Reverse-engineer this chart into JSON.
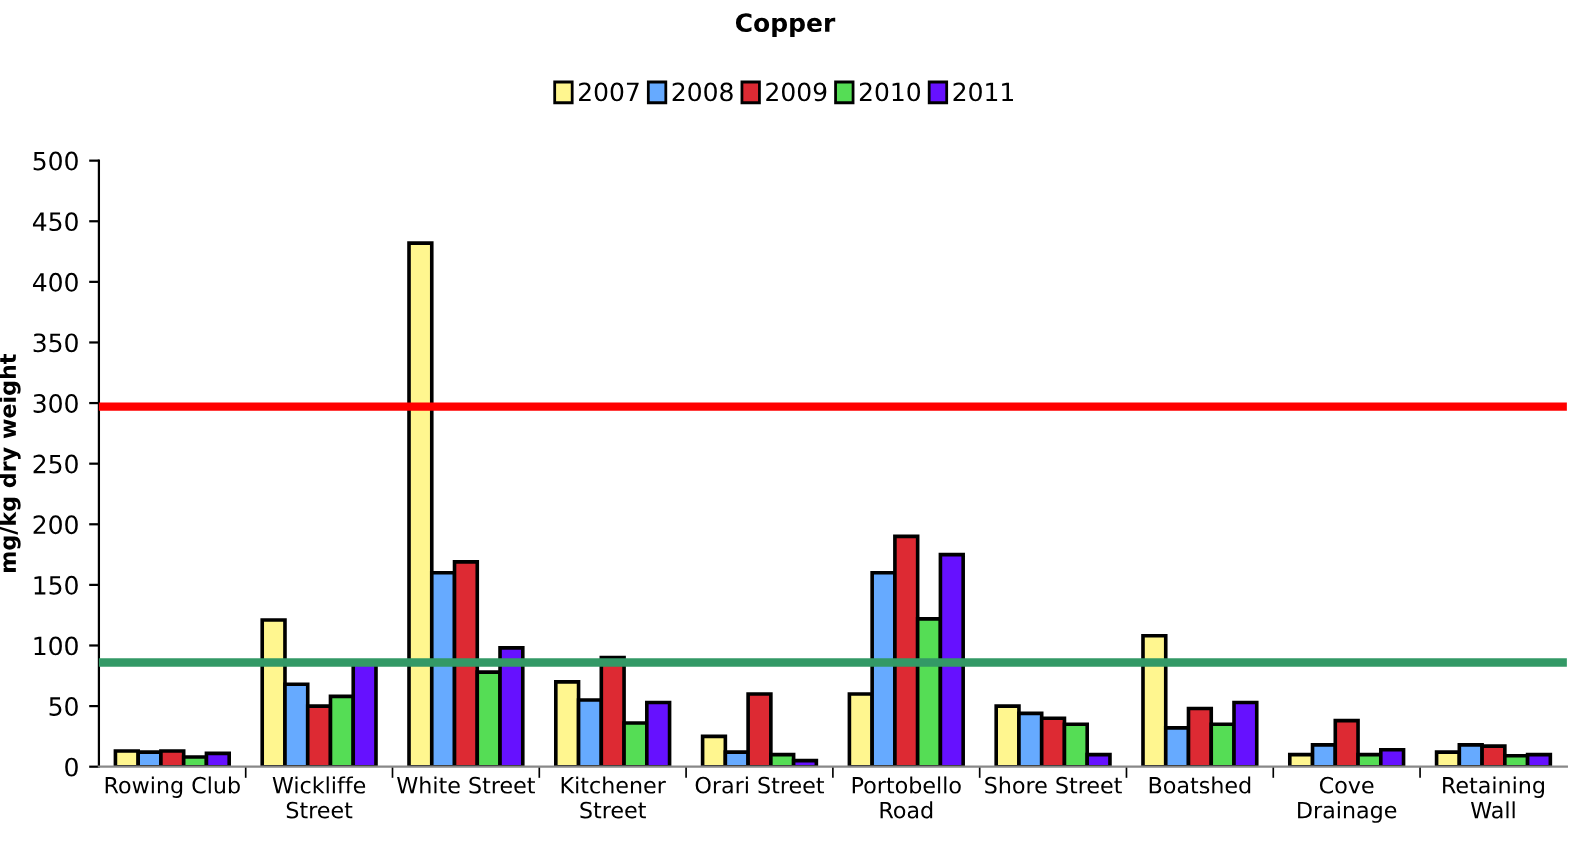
{
  "chart_data": {
    "type": "bar",
    "title": "Copper",
    "ylabel": "mg/kg dry weight",
    "categories": [
      "Rowing Club",
      "Wickliffe\nStreet",
      "White Street",
      "Kitchener\nStreet",
      "Orari Street",
      "Portobello\nRoad",
      "Shore Street",
      "Boatshed",
      "Cove\nDrainage",
      "Retaining\nWall"
    ],
    "series": [
      {
        "name": "2007",
        "color": "#fff68f",
        "values": [
          13,
          121,
          432,
          70,
          25,
          60,
          50,
          108,
          10,
          12
        ]
      },
      {
        "name": "2008",
        "color": "#66aaff",
        "values": [
          12,
          68,
          160,
          55,
          12,
          160,
          44,
          32,
          18,
          18
        ]
      },
      {
        "name": "2009",
        "color": "#dd2a33",
        "values": [
          13,
          50,
          169,
          90,
          60,
          190,
          40,
          48,
          38,
          17
        ]
      },
      {
        "name": "2010",
        "color": "#55dd55",
        "values": [
          8,
          58,
          78,
          36,
          10,
          122,
          35,
          35,
          10,
          9
        ]
      },
      {
        "name": "2011",
        "color": "#6611ff",
        "values": [
          11,
          85,
          98,
          53,
          5,
          175,
          10,
          53,
          14,
          10
        ]
      }
    ],
    "ylim": [
      0,
      500
    ],
    "yticks": [
      0,
      50,
      100,
      150,
      200,
      250,
      300,
      350,
      400,
      450,
      500
    ],
    "ref_lines": [
      {
        "axis": "y",
        "value": 297,
        "color": "#ff0000"
      },
      {
        "axis": "y",
        "value": 86,
        "color": "#339966"
      }
    ],
    "legend": "top",
    "grid": false
  }
}
